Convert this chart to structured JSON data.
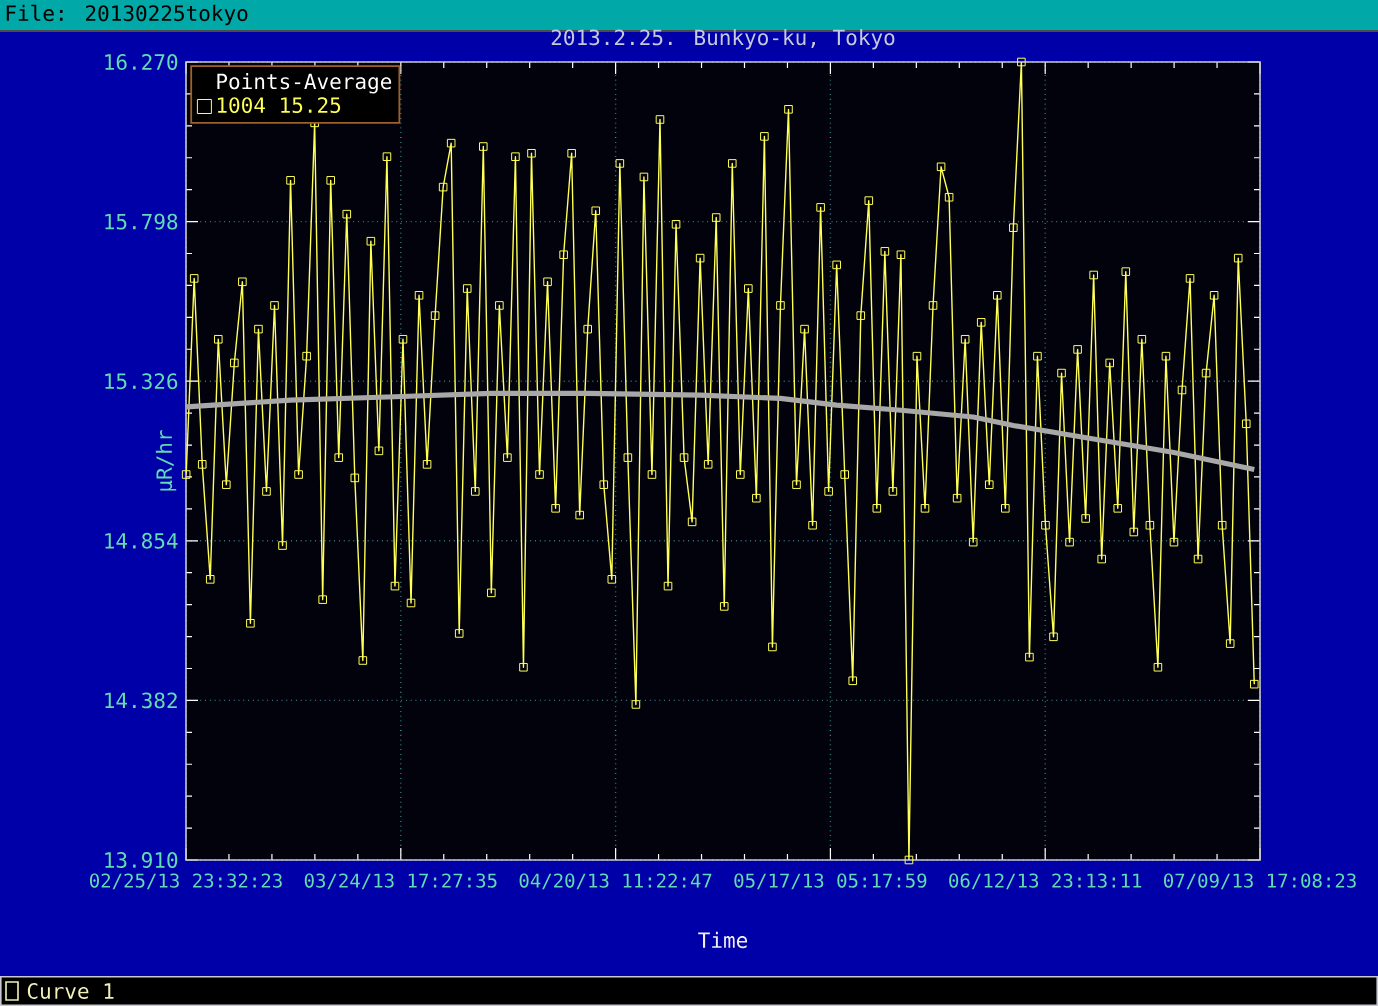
{
  "chart_data": {
    "type": "line",
    "title": "2013.2.25. Bunkyo-ku, Tokyo",
    "xlabel": "Time",
    "ylabel": "μR/hr",
    "legend_title": "Points-Average",
    "legend": "top left",
    "grid": true,
    "annotations": [
      "File: 20130225tokyo",
      "Curve 1"
    ],
    "xlim": [
      "2013-02-25T23:32:23",
      "2013-07-09T17:08:23"
    ],
    "xticks": [
      {
        "value": "2013-02-25T23:32:23",
        "label": "02/25/13 23:32:23"
      },
      {
        "value": "2013-03-24T17:27:35",
        "label": "03/24/13 17:27:35"
      },
      {
        "value": "2013-04-20T11:22:47",
        "label": "04/20/13 11:22:47"
      },
      {
        "value": "2013-05-17T05:17:59",
        "label": "05/17/13 05:17:59"
      },
      {
        "value": "2013-06-12T23:13:11",
        "label": "06/12/13 23:13:11"
      },
      {
        "value": "2013-07-09T17:08:23",
        "label": "07/09/13 17:08:23"
      }
    ],
    "ylim": [
      13.91,
      16.27
    ],
    "yticks": [
      {
        "value": 13.91,
        "label": "13.910"
      },
      14.382,
      14.854,
      15.326,
      15.798,
      {
        "value": 16.27,
        "label": "16.270"
      }
    ],
    "x": [
      "2013-02-26",
      "2013-02-27",
      "2013-02-28",
      "2013-03-01",
      "2013-03-02",
      "2013-03-03",
      "2013-03-04",
      "2013-03-05",
      "2013-03-06",
      "2013-03-07",
      "2013-03-08",
      "2013-03-09",
      "2013-03-10",
      "2013-03-11",
      "2013-03-12",
      "2013-03-13",
      "2013-03-14",
      "2013-03-15",
      "2013-03-16",
      "2013-03-17",
      "2013-03-18",
      "2013-03-19",
      "2013-03-20",
      "2013-03-21",
      "2013-03-22",
      "2013-03-23",
      "2013-03-24",
      "2013-03-25",
      "2013-03-26",
      "2013-03-27",
      "2013-03-28",
      "2013-03-29",
      "2013-03-30",
      "2013-03-31",
      "2013-04-01",
      "2013-04-02",
      "2013-04-03",
      "2013-04-04",
      "2013-04-05",
      "2013-04-06",
      "2013-04-07",
      "2013-04-08",
      "2013-04-09",
      "2013-04-10",
      "2013-04-11",
      "2013-04-12",
      "2013-04-13",
      "2013-04-14",
      "2013-04-15",
      "2013-04-16",
      "2013-04-17",
      "2013-04-18",
      "2013-04-19",
      "2013-04-20",
      "2013-04-21",
      "2013-04-22",
      "2013-04-23",
      "2013-04-24",
      "2013-04-25",
      "2013-04-26",
      "2013-04-27",
      "2013-04-28",
      "2013-04-29",
      "2013-04-30",
      "2013-05-01",
      "2013-05-02",
      "2013-05-03",
      "2013-05-04",
      "2013-05-05",
      "2013-05-06",
      "2013-05-07",
      "2013-05-08",
      "2013-05-09",
      "2013-05-10",
      "2013-05-11",
      "2013-05-12",
      "2013-05-13",
      "2013-05-14",
      "2013-05-15",
      "2013-05-16",
      "2013-05-17",
      "2013-05-18",
      "2013-05-19",
      "2013-05-20",
      "2013-05-21",
      "2013-05-22",
      "2013-05-23",
      "2013-05-24",
      "2013-05-25",
      "2013-05-26",
      "2013-05-27",
      "2013-05-28",
      "2013-05-29",
      "2013-05-30",
      "2013-05-31",
      "2013-06-01",
      "2013-06-02",
      "2013-06-03",
      "2013-06-04",
      "2013-06-05",
      "2013-06-06",
      "2013-06-07",
      "2013-06-08",
      "2013-06-09",
      "2013-06-10",
      "2013-06-11",
      "2013-06-12",
      "2013-06-13",
      "2013-06-14",
      "2013-06-15",
      "2013-06-16",
      "2013-06-17",
      "2013-06-18",
      "2013-06-19",
      "2013-06-20",
      "2013-06-21",
      "2013-06-22",
      "2013-06-23",
      "2013-06-24",
      "2013-06-25",
      "2013-06-26",
      "2013-06-27",
      "2013-06-28",
      "2013-06-29",
      "2013-06-30",
      "2013-07-01",
      "2013-07-02",
      "2013-07-03",
      "2013-07-04",
      "2013-07-05",
      "2013-07-06",
      "2013-07-07",
      "2013-07-08",
      "2013-07-09"
    ],
    "series": [
      {
        "name": "1004 15.25",
        "color": "#ffff55",
        "marker": "square",
        "values": [
          15.05,
          15.63,
          15.08,
          14.74,
          15.45,
          15.02,
          15.38,
          15.62,
          14.61,
          15.48,
          15.0,
          15.55,
          14.84,
          15.92,
          15.05,
          15.4,
          16.09,
          14.68,
          15.92,
          15.1,
          15.82,
          15.04,
          14.5,
          15.74,
          15.12,
          15.99,
          14.72,
          15.45,
          14.67,
          15.58,
          15.08,
          15.52,
          15.9,
          16.03,
          14.58,
          15.6,
          15.0,
          16.02,
          14.7,
          15.55,
          15.1,
          15.99,
          14.48,
          16.0,
          15.05,
          15.62,
          14.95,
          15.7,
          16.0,
          14.93,
          15.48,
          15.83,
          15.02,
          14.74,
          15.97,
          15.1,
          14.37,
          15.93,
          15.05,
          16.1,
          14.72,
          15.79,
          15.1,
          14.91,
          15.69,
          15.08,
          15.81,
          14.66,
          15.97,
          15.05,
          15.6,
          14.98,
          16.05,
          14.54,
          15.55,
          16.13,
          15.02,
          15.48,
          14.9,
          15.84,
          15.0,
          15.67,
          15.05,
          14.44,
          15.52,
          15.86,
          14.95,
          15.71,
          15.0,
          15.7,
          13.91,
          15.4,
          14.95,
          15.55,
          15.96,
          15.87,
          14.98,
          15.45,
          14.85,
          15.5,
          15.02,
          15.58,
          14.95,
          15.78,
          16.27,
          14.51,
          15.4,
          14.9,
          14.57,
          15.35,
          14.85,
          15.42,
          14.92,
          15.64,
          14.8,
          15.38,
          14.95,
          15.65,
          14.88,
          15.45,
          14.9,
          14.48,
          15.4,
          14.85,
          15.3,
          15.63,
          14.8,
          15.35,
          15.58,
          14.9,
          14.55,
          15.69,
          15.2,
          14.43
        ]
      },
      {
        "type": "line",
        "color": "#a8a8a8",
        "x": [
          "2013-02-26",
          "2013-03-11",
          "2013-03-24",
          "2013-04-05",
          "2013-04-17",
          "2013-05-01",
          "2013-05-11",
          "2013-05-18",
          "2013-05-26",
          "2013-06-04",
          "2013-06-09",
          "2013-06-19",
          "2013-06-29",
          "2013-07-09"
        ],
        "values": [
          15.25,
          15.27,
          15.28,
          15.29,
          15.29,
          15.285,
          15.275,
          15.255,
          15.24,
          15.22,
          15.195,
          15.155,
          15.115,
          15.065
        ]
      }
    ]
  }
}
